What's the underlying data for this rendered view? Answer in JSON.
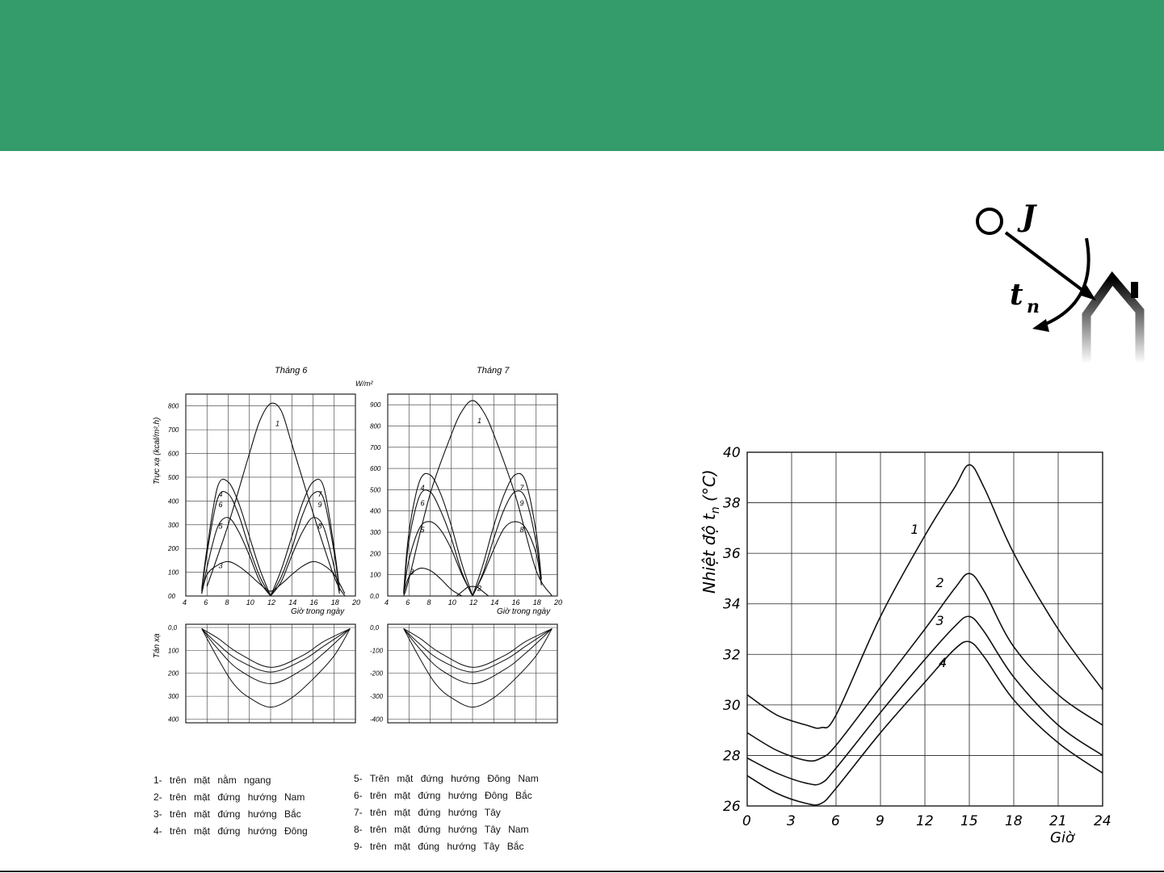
{
  "colors": {
    "banner": "#349b6a",
    "ink": "#111111"
  },
  "icon": {
    "name": "sun-radiation-house-icon",
    "label_j": "J",
    "label_t": "t",
    "label_t_sub": "n"
  },
  "solar": {
    "panel_titles": [
      "Tháng 6",
      "Tháng 7"
    ],
    "unit_kcal": "Trực xạ (kcal/m².h)",
    "unit_w": "W/m²",
    "scatter_label": "Tán xạ",
    "xlabel": "Giờ trong ngày",
    "x_ticks": [
      "4",
      "6",
      "8",
      "10",
      "12",
      "14",
      "16",
      "18",
      "20"
    ],
    "y_ticks_left": [
      "00",
      "100",
      "200",
      "300",
      "400",
      "500",
      "600",
      "700",
      "800"
    ],
    "y_ticks_right": [
      "0,0",
      "100",
      "200",
      "300",
      "400",
      "500",
      "600",
      "700",
      "800",
      "900"
    ],
    "y2_ticks_left": [
      "0,0",
      "100",
      "200",
      "300",
      "400"
    ],
    "y2_ticks_right": [
      "0,0",
      "-100",
      "-200",
      "-300",
      "-400"
    ],
    "legend_left": [
      "1- trên mặt nằm ngang",
      "2- trên mặt đứng hướng Nam",
      "3- trên mặt đứng hướng Bắc",
      "4- trên mặt đứng hướng Đông"
    ],
    "legend_right": [
      "5- Trên mặt đứng hướng Đông Nam",
      "6- trên mặt đứng hướng Đông Bắc",
      "7- trên mặt đứng hướng Tây",
      "8- trên mặt đứng hướng Tây Nam",
      "9- trên mặt đúng hướng Tây Bắc"
    ]
  },
  "chart_data": [
    {
      "type": "line",
      "title": "Tháng 6",
      "xlabel": "Giờ trong ngày",
      "ylabel": "Trực xạ (kcal/m².h)",
      "xlim": [
        4,
        20
      ],
      "ylim": [
        0,
        850
      ],
      "grid": true,
      "series": [
        {
          "name": "1",
          "x": [
            6,
            8,
            10,
            11,
            12,
            13,
            14,
            16,
            18,
            19
          ],
          "y": [
            40,
            300,
            600,
            740,
            810,
            780,
            640,
            350,
            80,
            0
          ]
        },
        {
          "name": "4",
          "x": [
            5.5,
            6,
            7,
            8,
            9,
            10,
            11,
            12
          ],
          "y": [
            30,
            200,
            460,
            480,
            390,
            250,
            110,
            0
          ]
        },
        {
          "name": "6",
          "x": [
            5.5,
            6,
            7,
            8,
            9,
            10,
            11,
            12
          ],
          "y": [
            20,
            180,
            410,
            430,
            340,
            200,
            80,
            0
          ]
        },
        {
          "name": "5",
          "x": [
            5.5,
            6,
            7,
            8,
            9,
            10,
            11,
            12
          ],
          "y": [
            10,
            120,
            290,
            330,
            270,
            170,
            60,
            0
          ]
        },
        {
          "name": "3",
          "x": [
            5.5,
            6,
            7,
            8,
            9,
            10,
            11,
            12,
            13,
            14,
            15,
            16,
            17,
            18,
            19
          ],
          "y": [
            10,
            90,
            130,
            145,
            125,
            90,
            50,
            20,
            50,
            90,
            125,
            145,
            130,
            90,
            10
          ]
        },
        {
          "name": "7",
          "x": [
            12,
            13,
            14,
            15,
            16,
            17,
            18,
            18.5
          ],
          "y": [
            0,
            110,
            250,
            390,
            480,
            460,
            200,
            30
          ]
        },
        {
          "name": "9",
          "x": [
            12,
            13,
            14,
            15,
            16,
            17,
            18,
            18.5
          ],
          "y": [
            0,
            80,
            200,
            340,
            430,
            410,
            180,
            20
          ]
        },
        {
          "name": "8",
          "x": [
            12,
            13,
            14,
            15,
            16,
            17,
            18,
            18.5
          ],
          "y": [
            0,
            60,
            170,
            270,
            330,
            290,
            120,
            10
          ]
        }
      ]
    },
    {
      "type": "line",
      "title": "Tháng 7",
      "xlabel": "Giờ trong ngày",
      "ylabel": "W/m²",
      "xlim": [
        4,
        20
      ],
      "ylim": [
        0,
        950
      ],
      "grid": true,
      "series": [
        {
          "name": "1",
          "x": [
            5.5,
            6,
            8,
            10,
            11,
            12,
            13,
            14,
            16,
            18,
            19.5
          ],
          "y": [
            0,
            80,
            480,
            760,
            870,
            920,
            870,
            760,
            480,
            120,
            0
          ]
        },
        {
          "name": "4",
          "x": [
            5.5,
            6,
            7,
            8,
            9,
            10,
            11,
            12
          ],
          "y": [
            20,
            300,
            540,
            570,
            480,
            330,
            150,
            0
          ]
        },
        {
          "name": "6",
          "x": [
            5.5,
            6,
            7,
            8,
            9,
            10,
            11,
            12
          ],
          "y": [
            10,
            260,
            470,
            490,
            400,
            270,
            110,
            0
          ]
        },
        {
          "name": "5",
          "x": [
            5.5,
            6,
            7,
            8,
            9,
            10,
            11,
            12
          ],
          "y": [
            10,
            170,
            320,
            350,
            310,
            220,
            100,
            0
          ]
        },
        {
          "name": "3",
          "x": [
            5.5,
            6,
            7,
            8,
            9,
            10,
            11
          ],
          "y": [
            10,
            90,
            130,
            120,
            80,
            30,
            0
          ]
        },
        {
          "name": "2",
          "x": [
            10.5,
            11,
            11.5,
            12,
            12.5,
            13,
            13.5
          ],
          "y": [
            0,
            20,
            40,
            45,
            40,
            20,
            0
          ]
        },
        {
          "name": "7",
          "x": [
            12,
            13,
            14,
            15,
            16,
            17,
            18,
            18.5
          ],
          "y": [
            0,
            150,
            330,
            480,
            570,
            540,
            300,
            80
          ]
        },
        {
          "name": "9",
          "x": [
            12,
            13,
            14,
            15,
            16,
            17,
            18,
            18.5
          ],
          "y": [
            0,
            110,
            270,
            410,
            490,
            460,
            250,
            60
          ]
        },
        {
          "name": "8",
          "x": [
            12,
            13,
            14,
            15,
            16,
            17,
            18,
            18.5
          ],
          "y": [
            0,
            100,
            220,
            320,
            350,
            320,
            200,
            50
          ]
        }
      ]
    },
    {
      "type": "line",
      "title": "",
      "xlabel": "Giờ",
      "ylabel": "Nhiệt độ t_n (°C)",
      "xlim": [
        0,
        24
      ],
      "ylim": [
        26,
        40
      ],
      "x_ticks": [
        0,
        3,
        6,
        9,
        12,
        15,
        18,
        21,
        24
      ],
      "y_ticks": [
        26,
        28,
        30,
        32,
        34,
        36,
        38,
        40
      ],
      "grid": true,
      "series": [
        {
          "name": "1",
          "x": [
            0,
            2,
            4,
            5,
            6,
            9,
            12,
            14,
            15,
            16,
            18,
            21,
            24
          ],
          "y": [
            30.4,
            29.6,
            29.2,
            29.1,
            29.6,
            33.5,
            36.7,
            38.6,
            39.5,
            38.6,
            36.0,
            33.0,
            30.6
          ]
        },
        {
          "name": "2",
          "x": [
            0,
            2,
            4,
            5,
            6,
            9,
            12,
            14,
            15,
            16,
            18,
            21,
            24
          ],
          "y": [
            28.9,
            28.2,
            27.8,
            27.9,
            28.4,
            30.7,
            33.0,
            34.6,
            35.2,
            34.5,
            32.3,
            30.4,
            29.2
          ]
        },
        {
          "name": "3",
          "x": [
            0,
            2,
            4,
            5,
            6,
            9,
            12,
            14,
            15,
            16,
            18,
            21,
            24
          ],
          "y": [
            27.9,
            27.3,
            26.9,
            26.9,
            27.5,
            29.7,
            31.8,
            33.1,
            33.5,
            32.9,
            31.1,
            29.2,
            28.0
          ]
        },
        {
          "name": "4",
          "x": [
            0,
            2,
            4,
            5,
            6,
            9,
            12,
            14,
            15,
            16,
            18,
            21,
            24
          ],
          "y": [
            27.2,
            26.5,
            26.1,
            26.1,
            26.7,
            28.9,
            30.9,
            32.2,
            32.5,
            31.9,
            30.2,
            28.5,
            27.3
          ]
        }
      ]
    }
  ]
}
